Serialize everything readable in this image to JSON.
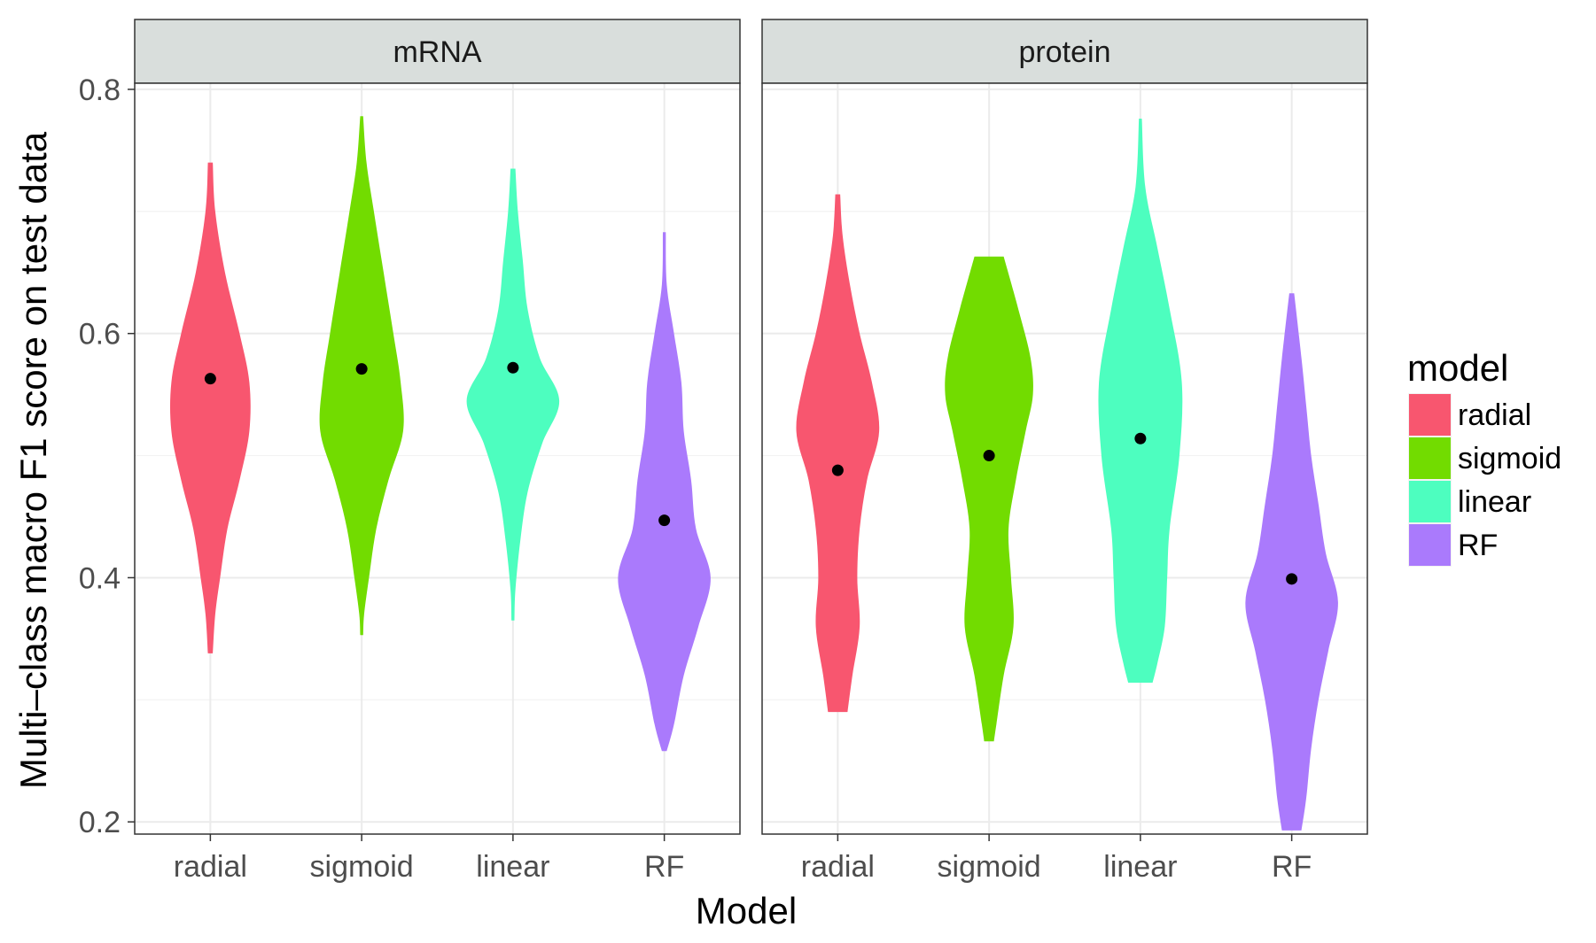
{
  "chart_data": {
    "type": "violin",
    "xlabel": "Model",
    "ylabel": "Multi–class macro F1 score on test data",
    "ylim": [
      0.19,
      0.805
    ],
    "yticks": [
      "0.2",
      "0.4",
      "0.6",
      "0.8"
    ],
    "categories": [
      "radial",
      "sigmoid",
      "linear",
      "RF"
    ],
    "legend": {
      "title": "model",
      "placement": "right",
      "entries": [
        {
          "label": "radial",
          "color": "#F8566F"
        },
        {
          "label": "sigmoid",
          "color": "#72DC00"
        },
        {
          "label": "linear",
          "color": "#4DFEBF"
        },
        {
          "label": "RF",
          "color": "#AA7AFC"
        }
      ]
    },
    "grid": true,
    "panels": [
      {
        "strip": "mRNA",
        "series": [
          {
            "category": "radial",
            "min": 0.338,
            "max": 0.74,
            "point": 0.563,
            "profile": [
              [
                0.74,
                0.05
              ],
              [
                0.7,
                0.1
              ],
              [
                0.65,
                0.3
              ],
              [
                0.6,
                0.6
              ],
              [
                0.56,
                0.8
              ],
              [
                0.52,
                0.8
              ],
              [
                0.48,
                0.6
              ],
              [
                0.44,
                0.35
              ],
              [
                0.4,
                0.2
              ],
              [
                0.37,
                0.1
              ],
              [
                0.338,
                0.05
              ]
            ]
          },
          {
            "category": "sigmoid",
            "min": 0.353,
            "max": 0.778,
            "point": 0.571,
            "profile": [
              [
                0.778,
                0.03
              ],
              [
                0.74,
                0.1
              ],
              [
                0.7,
                0.25
              ],
              [
                0.65,
                0.45
              ],
              [
                0.6,
                0.65
              ],
              [
                0.56,
                0.8
              ],
              [
                0.52,
                0.85
              ],
              [
                0.48,
                0.55
              ],
              [
                0.44,
                0.3
              ],
              [
                0.4,
                0.15
              ],
              [
                0.37,
                0.05
              ],
              [
                0.353,
                0.03
              ]
            ]
          },
          {
            "category": "linear",
            "min": 0.365,
            "max": 0.735,
            "point": 0.572,
            "profile": [
              [
                0.735,
                0.05
              ],
              [
                0.7,
                0.1
              ],
              [
                0.66,
                0.2
              ],
              [
                0.62,
                0.3
              ],
              [
                0.58,
                0.55
              ],
              [
                0.545,
                0.95
              ],
              [
                0.51,
                0.6
              ],
              [
                0.47,
                0.3
              ],
              [
                0.43,
                0.15
              ],
              [
                0.39,
                0.05
              ],
              [
                0.365,
                0.03
              ]
            ]
          },
          {
            "category": "RF",
            "min": 0.258,
            "max": 0.683,
            "point": 0.447,
            "profile": [
              [
                0.683,
                0.03
              ],
              [
                0.64,
                0.05
              ],
              [
                0.6,
                0.2
              ],
              [
                0.56,
                0.35
              ],
              [
                0.52,
                0.4
              ],
              [
                0.48,
                0.55
              ],
              [
                0.44,
                0.65
              ],
              [
                0.4,
                0.95
              ],
              [
                0.36,
                0.7
              ],
              [
                0.32,
                0.4
              ],
              [
                0.28,
                0.2
              ],
              [
                0.258,
                0.05
              ]
            ]
          }
        ]
      },
      {
        "strip": "protein",
        "series": [
          {
            "category": "radial",
            "min": 0.29,
            "max": 0.714,
            "point": 0.488,
            "profile": [
              [
                0.714,
                0.05
              ],
              [
                0.68,
                0.1
              ],
              [
                0.64,
                0.25
              ],
              [
                0.6,
                0.45
              ],
              [
                0.56,
                0.7
              ],
              [
                0.52,
                0.85
              ],
              [
                0.48,
                0.6
              ],
              [
                0.44,
                0.45
              ],
              [
                0.4,
                0.4
              ],
              [
                0.36,
                0.45
              ],
              [
                0.32,
                0.3
              ],
              [
                0.29,
                0.2
              ]
            ]
          },
          {
            "category": "sigmoid",
            "min": 0.266,
            "max": 0.663,
            "point": 0.5,
            "profile": [
              [
                0.663,
                0.3
              ],
              [
                0.62,
                0.6
              ],
              [
                0.58,
                0.85
              ],
              [
                0.55,
                0.9
              ],
              [
                0.52,
                0.75
              ],
              [
                0.48,
                0.55
              ],
              [
                0.44,
                0.4
              ],
              [
                0.4,
                0.45
              ],
              [
                0.36,
                0.5
              ],
              [
                0.32,
                0.3
              ],
              [
                0.28,
                0.15
              ],
              [
                0.266,
                0.1
              ]
            ]
          },
          {
            "category": "linear",
            "min": 0.314,
            "max": 0.776,
            "point": 0.514,
            "profile": [
              [
                0.776,
                0.03
              ],
              [
                0.72,
                0.1
              ],
              [
                0.67,
                0.35
              ],
              [
                0.62,
                0.6
              ],
              [
                0.56,
                0.85
              ],
              [
                0.5,
                0.8
              ],
              [
                0.44,
                0.6
              ],
              [
                0.4,
                0.55
              ],
              [
                0.36,
                0.5
              ],
              [
                0.33,
                0.35
              ],
              [
                0.314,
                0.25
              ]
            ]
          },
          {
            "category": "RF",
            "min": 0.193,
            "max": 0.633,
            "point": 0.399,
            "profile": [
              [
                0.633,
                0.05
              ],
              [
                0.58,
                0.2
              ],
              [
                0.54,
                0.3
              ],
              [
                0.5,
                0.4
              ],
              [
                0.46,
                0.55
              ],
              [
                0.42,
                0.7
              ],
              [
                0.38,
                0.95
              ],
              [
                0.34,
                0.75
              ],
              [
                0.3,
                0.55
              ],
              [
                0.26,
                0.4
              ],
              [
                0.22,
                0.3
              ],
              [
                0.193,
                0.2
              ]
            ]
          }
        ]
      }
    ]
  }
}
